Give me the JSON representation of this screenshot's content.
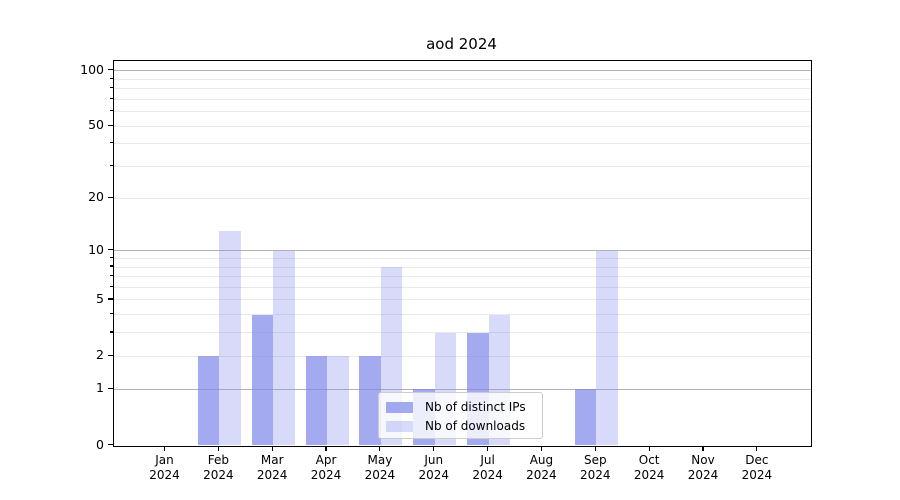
{
  "title": "aod 2024",
  "year_label": "2024",
  "months": [
    "Jan",
    "Feb",
    "Mar",
    "Apr",
    "May",
    "Jun",
    "Jul",
    "Aug",
    "Sep",
    "Oct",
    "Nov",
    "Dec"
  ],
  "y_tick_labels": [
    "100",
    "50",
    "20",
    "10",
    "5",
    "2",
    "1",
    "0"
  ],
  "legend": {
    "items": [
      {
        "label": "Nb of distinct IPs",
        "color": "rgba(125,134,234,0.7)"
      },
      {
        "label": "Nb of downloads",
        "color": "rgba(125,134,234,0.3)"
      }
    ]
  },
  "colors": {
    "bar_base": "#7d86ea",
    "bar_dark": "rgba(125,134,234,0.7)",
    "bar_light": "rgba(125,134,234,0.3)",
    "grid_major": "#b3b3b3",
    "grid_minor": "#e9e9e9",
    "axis": "#000000",
    "legend_border": "#cccccc"
  },
  "chart_data": {
    "type": "bar",
    "title": "aod 2024",
    "categories": [
      "Jan 2024",
      "Feb 2024",
      "Mar 2024",
      "Apr 2024",
      "May 2024",
      "Jun 2024",
      "Jul 2024",
      "Aug 2024",
      "Sep 2024",
      "Oct 2024",
      "Nov 2024",
      "Dec 2024"
    ],
    "series": [
      {
        "name": "Nb of distinct IPs",
        "values": [
          0,
          2,
          4,
          2,
          2,
          1,
          3,
          0,
          1,
          0,
          0,
          0
        ]
      },
      {
        "name": "Nb of downloads",
        "values": [
          0,
          13,
          10,
          2,
          8,
          3,
          4,
          0,
          10,
          0,
          0,
          0
        ]
      }
    ],
    "xlabel": "",
    "ylabel": "",
    "yscale": "log1p",
    "ylim": [
      0,
      113
    ],
    "yticks_labeled": [
      0,
      1,
      2,
      5,
      10,
      20,
      50,
      100
    ],
    "grid_major_values": [
      1,
      10,
      100
    ],
    "grid_minor_values": [
      2,
      3,
      4,
      5,
      6,
      7,
      8,
      9,
      20,
      30,
      40,
      50,
      60,
      70,
      80,
      90
    ],
    "ytick_minor_values": [
      3,
      4,
      6,
      7,
      8,
      9,
      30,
      40,
      60,
      70,
      80,
      90
    ],
    "legend_position": "lower center",
    "grid": true
  }
}
